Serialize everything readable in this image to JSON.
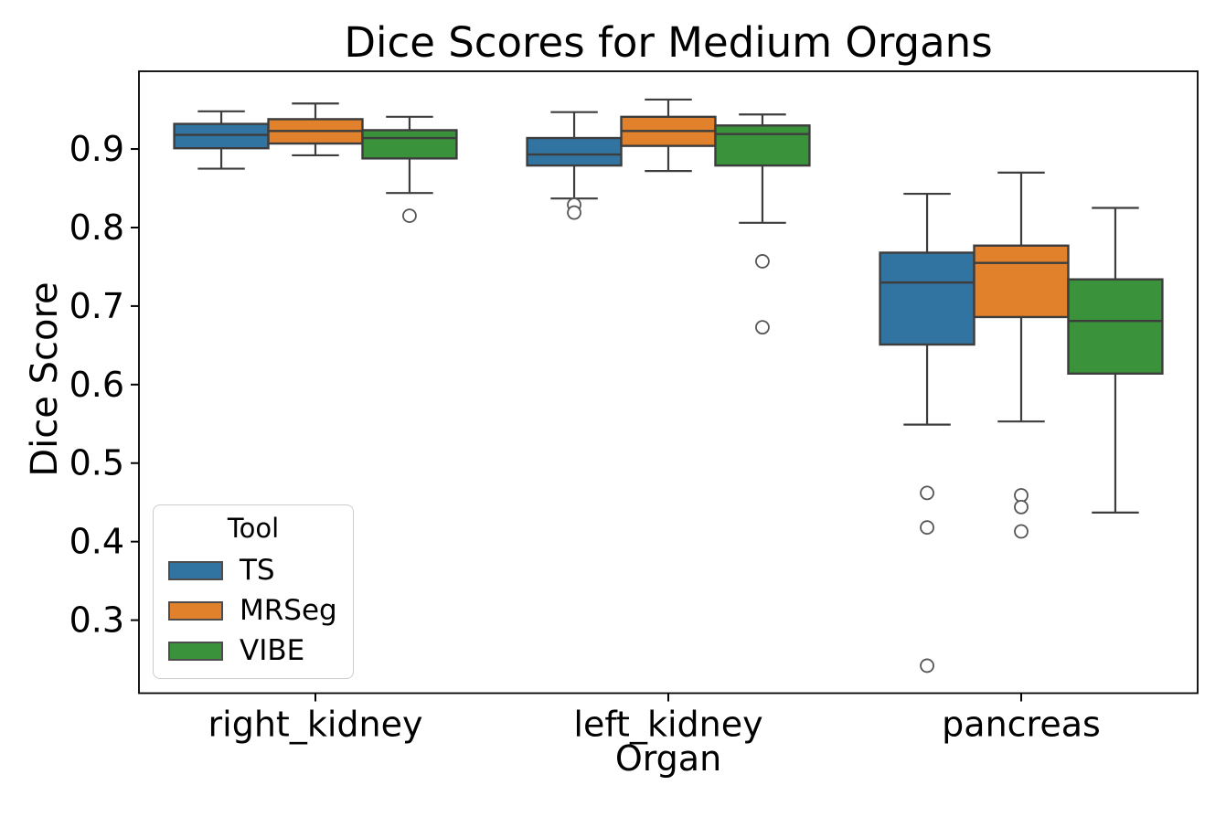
{
  "figure": {
    "background": "#ffffff"
  },
  "chart_data": {
    "type": "box",
    "title": "Dice Scores for Medium Organs",
    "xlabel": "Organ",
    "ylabel": "Dice Score",
    "categories": [
      "right_kidney",
      "left_kidney",
      "pancreas"
    ],
    "yticks": [
      0.9,
      0.8,
      0.7,
      0.6,
      0.5,
      0.4,
      0.3
    ],
    "ylim": [
      0.207,
      0.999
    ],
    "grid": false,
    "legend": {
      "title": "Tool",
      "position": "lower left"
    },
    "colors": {
      "box_edge": "#3d3d3d",
      "whisker": "#3d3d3d",
      "median": "#3d3d3d",
      "outlier_stroke": "#555555",
      "axis": "#000000",
      "tick_label": "#000000"
    },
    "series": [
      {
        "name": "TS",
        "color": "#3274a1",
        "stats": [
          {
            "whislo": 0.875,
            "q1": 0.901,
            "med": 0.918,
            "q3": 0.932,
            "whishi": 0.948,
            "fliers": []
          },
          {
            "whislo": 0.837,
            "q1": 0.879,
            "med": 0.893,
            "q3": 0.914,
            "whishi": 0.947,
            "fliers": [
              0.829,
              0.819
            ]
          },
          {
            "whislo": 0.549,
            "q1": 0.651,
            "med": 0.73,
            "q3": 0.768,
            "whishi": 0.843,
            "fliers": [
              0.462,
              0.418,
              0.242
            ]
          }
        ]
      },
      {
        "name": "MRSeg",
        "color": "#e1812c",
        "stats": [
          {
            "whislo": 0.892,
            "q1": 0.907,
            "med": 0.923,
            "q3": 0.938,
            "whishi": 0.958,
            "fliers": []
          },
          {
            "whislo": 0.872,
            "q1": 0.904,
            "med": 0.923,
            "q3": 0.941,
            "whishi": 0.963,
            "fliers": []
          },
          {
            "whislo": 0.553,
            "q1": 0.686,
            "med": 0.755,
            "q3": 0.777,
            "whishi": 0.87,
            "fliers": [
              0.459,
              0.444,
              0.413
            ]
          }
        ]
      },
      {
        "name": "VIBE",
        "color": "#3a923a",
        "stats": [
          {
            "whislo": 0.844,
            "q1": 0.888,
            "med": 0.914,
            "q3": 0.924,
            "whishi": 0.941,
            "fliers": [
              0.815
            ]
          },
          {
            "whislo": 0.806,
            "q1": 0.879,
            "med": 0.919,
            "q3": 0.93,
            "whishi": 0.944,
            "fliers": [
              0.757,
              0.673
            ]
          },
          {
            "whislo": 0.437,
            "q1": 0.614,
            "med": 0.681,
            "q3": 0.734,
            "whishi": 0.825,
            "fliers": []
          }
        ]
      }
    ]
  }
}
